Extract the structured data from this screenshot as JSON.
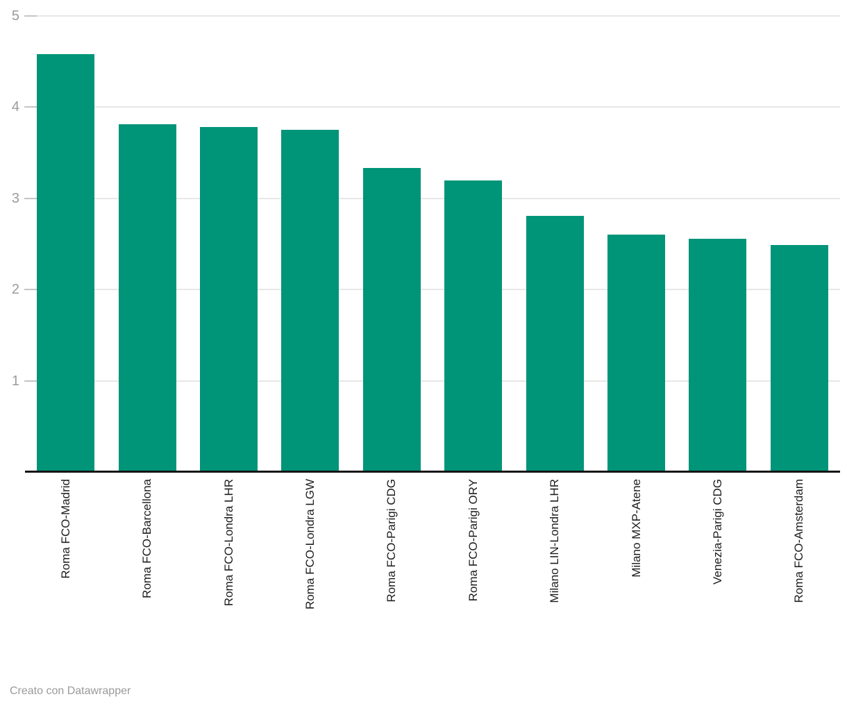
{
  "chart_data": {
    "type": "bar",
    "title": "",
    "categories": [
      "Roma FCO-Madrid",
      "Roma FCO-Barcellona",
      "Roma FCO-Londra LHR",
      "Roma FCO-Londra LGW",
      "Roma FCO-Parigi CDG",
      "Roma FCO-Parigi ORY",
      "Milano LIN-Londra LHR",
      "Milano MXP-Atene",
      "Venezia-Parigi CDG",
      "Roma FCO-Amsterdam"
    ],
    "values": [
      4.58,
      3.81,
      3.78,
      3.75,
      3.33,
      3.2,
      2.81,
      2.6,
      2.56,
      2.49
    ],
    "ylim": [
      0,
      5
    ],
    "yticks": [
      1,
      2,
      3,
      4,
      5
    ],
    "grid": true,
    "legend": "none",
    "bar_color": "#009478",
    "axis_color": "#151515",
    "gridline_color": "#e7e7e7",
    "tick_color": "#c4c4c4",
    "ylabel_color": "#9b9b9b",
    "xlabel_color": "#1d1d1d"
  },
  "footer": {
    "attribution": "Creato con Datawrapper"
  }
}
